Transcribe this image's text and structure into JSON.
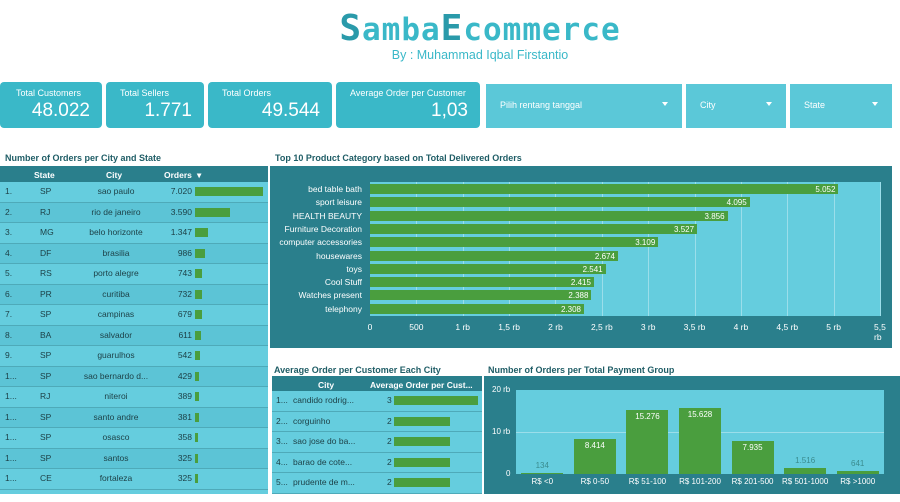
{
  "header": {
    "title_prefix_big": "S",
    "title_part1": "amba",
    "title_big2": "E",
    "title_part2": "commerce",
    "subtitle": "By : Muhammad Iqbal Firstantio"
  },
  "kpis": [
    {
      "label": "Total Customers",
      "value": "48.022"
    },
    {
      "label": "Total Sellers",
      "value": "1.771"
    },
    {
      "label": "Total Orders",
      "value": "49.544"
    },
    {
      "label": "Average Order per Customer",
      "value": "1,03"
    }
  ],
  "controls": {
    "date_range": "Pilih rentang tanggal",
    "city": "City",
    "state": "State"
  },
  "city_table": {
    "title": "Number of Orders per City and State",
    "headers": [
      "State",
      "City",
      "Orders"
    ],
    "sort_indicator": "▾",
    "rows": [
      {
        "n": "1.",
        "state": "SP",
        "city": "sao paulo",
        "orders": "7.020",
        "value": 7020
      },
      {
        "n": "2.",
        "state": "RJ",
        "city": "rio de janeiro",
        "orders": "3.590",
        "value": 3590
      },
      {
        "n": "3.",
        "state": "MG",
        "city": "belo horizonte",
        "orders": "1.347",
        "value": 1347
      },
      {
        "n": "4.",
        "state": "DF",
        "city": "brasilia",
        "orders": "986",
        "value": 986
      },
      {
        "n": "5.",
        "state": "RS",
        "city": "porto alegre",
        "orders": "743",
        "value": 743
      },
      {
        "n": "6.",
        "state": "PR",
        "city": "curitiba",
        "orders": "732",
        "value": 732
      },
      {
        "n": "7.",
        "state": "SP",
        "city": "campinas",
        "orders": "679",
        "value": 679
      },
      {
        "n": "8.",
        "state": "BA",
        "city": "salvador",
        "orders": "611",
        "value": 611
      },
      {
        "n": "9.",
        "state": "SP",
        "city": "guarulhos",
        "orders": "542",
        "value": 542
      },
      {
        "n": "1...",
        "state": "SP",
        "city": "sao bernardo d...",
        "orders": "429",
        "value": 429
      },
      {
        "n": "1...",
        "state": "RJ",
        "city": "niteroi",
        "orders": "389",
        "value": 389
      },
      {
        "n": "1...",
        "state": "SP",
        "city": "santo andre",
        "orders": "381",
        "value": 381
      },
      {
        "n": "1...",
        "state": "SP",
        "city": "osasco",
        "orders": "358",
        "value": 358
      },
      {
        "n": "1...",
        "state": "SP",
        "city": "santos",
        "orders": "325",
        "value": 325
      },
      {
        "n": "1...",
        "state": "CE",
        "city": "fortaleza",
        "orders": "325",
        "value": 325
      }
    ]
  },
  "chart_data": [
    {
      "type": "bar",
      "title": "Top 10 Product Category based on Total Delivered Orders",
      "orientation": "horizontal",
      "categories": [
        "bed table bath",
        "sport leisure",
        "HEALTH BEAUTY",
        "Furniture Decoration",
        "computer accessories",
        "housewares",
        "toys",
        "Cool Stuff",
        "Watches present",
        "telephony"
      ],
      "values": [
        5052,
        4095,
        3856,
        3527,
        3109,
        2674,
        2541,
        2415,
        2388,
        2308
      ],
      "value_labels": [
        "5.052",
        "4.095",
        "3.856",
        "3.527",
        "3.109",
        "2.674",
        "2.541",
        "2.415",
        "2.388",
        "2.308"
      ],
      "xlim": [
        0,
        5500
      ],
      "xticks": [
        "0",
        "500",
        "1 rb",
        "1,5 rb",
        "2 rb",
        "2,5 rb",
        "3 rb",
        "3,5 rb",
        "4 rb",
        "4,5 rb",
        "5 rb",
        "5,5 rb"
      ],
      "grid": true
    },
    {
      "type": "bar",
      "title": "Number of Orders per Total Payment Group",
      "categories": [
        "R$ <0",
        "R$ 0-50",
        "R$ 51-100",
        "R$ 101-200",
        "R$ 201-500",
        "R$ 501-1000",
        "R$ >1000"
      ],
      "values": [
        134,
        8414,
        15276,
        15628,
        7935,
        1516,
        641
      ],
      "value_labels": [
        "134",
        "8.414",
        "15.276",
        "15.628",
        "7.935",
        "1.516",
        "641"
      ],
      "ylim": [
        0,
        20000
      ],
      "yticks": [
        "20 rb",
        "10 rb",
        "0"
      ],
      "grid": true
    }
  ],
  "avg_table": {
    "title": "Average Order per Customer Each City",
    "headers": [
      "City",
      "Average Order per Cust..."
    ],
    "rows": [
      {
        "n": "1...",
        "city": "candido rodrig...",
        "avg": "3",
        "value": 3
      },
      {
        "n": "2...",
        "city": "corguinho",
        "avg": "2",
        "value": 2
      },
      {
        "n": "3...",
        "city": "sao jose do ba...",
        "avg": "2",
        "value": 2
      },
      {
        "n": "4...",
        "city": "barao de cote...",
        "avg": "2",
        "value": 2
      },
      {
        "n": "5...",
        "city": "prudente de m...",
        "avg": "2",
        "value": 2
      }
    ]
  },
  "colors": {
    "accent": "#3ab8c8",
    "dark_panel": "#2a7f8c",
    "light_panel": "#65cdde",
    "bar": "#4a9e3e"
  }
}
